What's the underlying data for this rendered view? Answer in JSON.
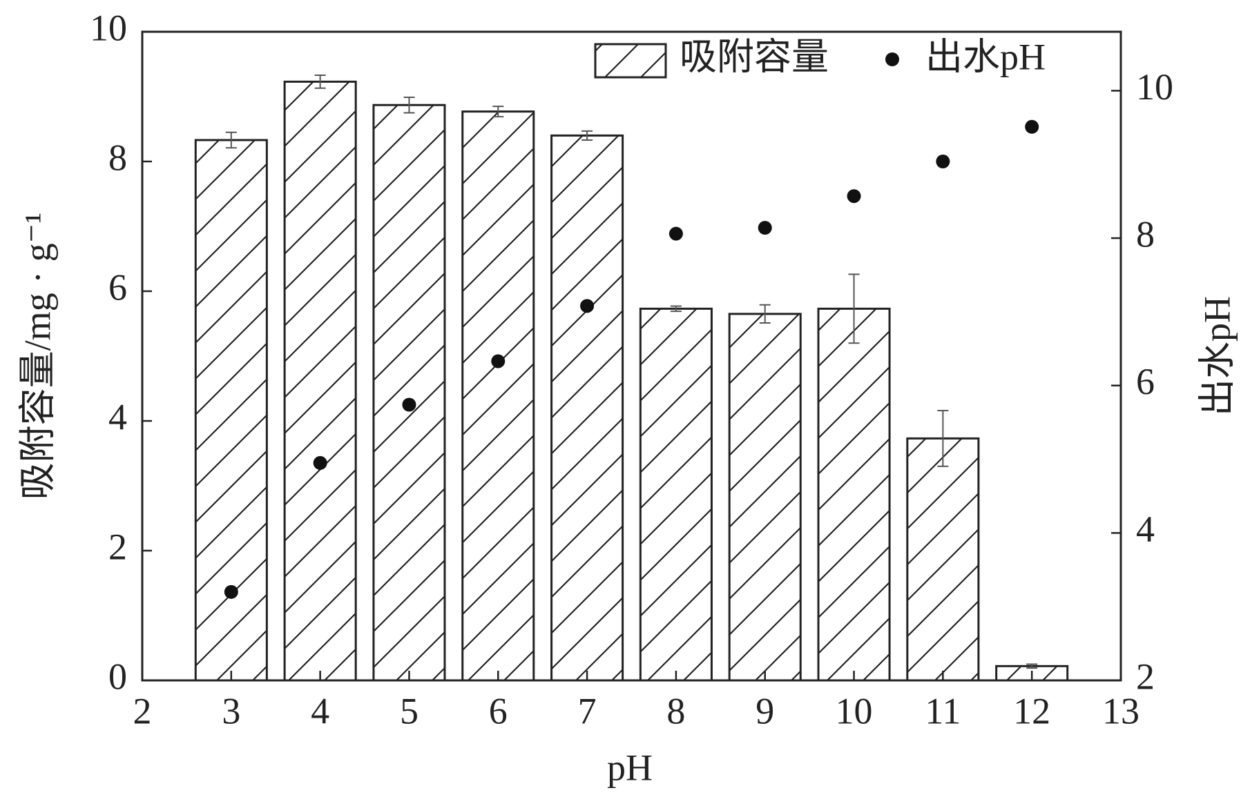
{
  "chart_data": {
    "type": "bar",
    "xlabel": "pH",
    "ylabel": "吸附容量/mg · g⁻¹",
    "y2label": "出水pH",
    "x": [
      3,
      4,
      5,
      6,
      7,
      8,
      9,
      10,
      11,
      12
    ],
    "xlim": [
      2,
      13
    ],
    "xticks": [
      2,
      3,
      4,
      5,
      6,
      7,
      8,
      9,
      10,
      11,
      12,
      13
    ],
    "ylim": [
      0,
      10
    ],
    "yticks": [
      0,
      2,
      4,
      6,
      8,
      10
    ],
    "y2lim": [
      2,
      10.8
    ],
    "y2ticks": [
      2,
      4,
      6,
      8,
      10
    ],
    "bar_width": 0.8,
    "legend": "upper right",
    "series": [
      {
        "name": "吸附容量",
        "type": "bar",
        "color": "#222222",
        "hatch": "/",
        "values": [
          8.33,
          9.23,
          8.87,
          8.77,
          8.4,
          5.73,
          5.65,
          5.73,
          3.73,
          0.22
        ],
        "errors": [
          0.12,
          0.1,
          0.12,
          0.08,
          0.07,
          0.04,
          0.14,
          0.53,
          0.43,
          0.03
        ]
      },
      {
        "name": "出水pH",
        "type": "scatter",
        "axis": "y2",
        "color": "#111111",
        "values": [
          3.2,
          4.95,
          5.74,
          6.33,
          7.08,
          8.06,
          8.14,
          8.57,
          9.04,
          9.51
        ]
      }
    ]
  }
}
